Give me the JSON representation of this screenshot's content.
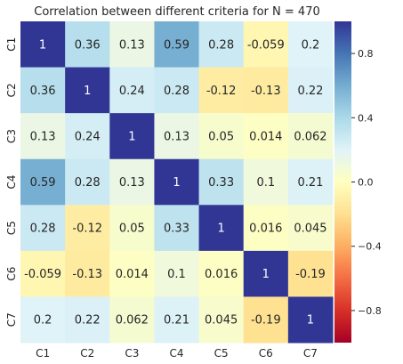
{
  "chart_data": {
    "type": "heatmap",
    "title": "Correlation between different criteria for N = 470",
    "xlabel": "",
    "ylabel": "",
    "x_labels": [
      "C1",
      "C2",
      "C3",
      "C4",
      "C5",
      "C6",
      "C7"
    ],
    "y_labels": [
      "C1",
      "C2",
      "C3",
      "C4",
      "C5",
      "C6",
      "C7"
    ],
    "values": [
      [
        1,
        0.36,
        0.13,
        0.59,
        0.28,
        -0.059,
        0.2
      ],
      [
        0.36,
        1,
        0.24,
        0.28,
        -0.12,
        -0.13,
        0.22
      ],
      [
        0.13,
        0.24,
        1,
        0.13,
        0.05,
        0.014,
        0.062
      ],
      [
        0.59,
        0.28,
        0.13,
        1,
        0.33,
        0.1,
        0.21
      ],
      [
        0.28,
        -0.12,
        0.05,
        0.33,
        1,
        0.016,
        0.045
      ],
      [
        -0.059,
        -0.13,
        0.014,
        0.1,
        0.016,
        1,
        -0.19
      ],
      [
        0.2,
        0.22,
        0.062,
        0.21,
        0.045,
        -0.19,
        1
      ]
    ],
    "value_labels": [
      [
        "1",
        "0.36",
        "0.13",
        "0.59",
        "0.28",
        "-0.059",
        "0.2"
      ],
      [
        "0.36",
        "1",
        "0.24",
        "0.28",
        "-0.12",
        "-0.13",
        "0.22"
      ],
      [
        "0.13",
        "0.24",
        "1",
        "0.13",
        "0.05",
        "0.014",
        "0.062"
      ],
      [
        "0.59",
        "0.28",
        "0.13",
        "1",
        "0.33",
        "0.1",
        "0.21"
      ],
      [
        "0.28",
        "-0.12",
        "0.05",
        "0.33",
        "1",
        "0.016",
        "0.045"
      ],
      [
        "-0.059",
        "-0.13",
        "0.014",
        "0.1",
        "0.016",
        "1",
        "-0.19"
      ],
      [
        "0.2",
        "0.22",
        "0.062",
        "0.21",
        "0.045",
        "-0.19",
        "1"
      ]
    ],
    "colorscale": "RdYlBu",
    "colorscale_stops": [
      "#a50026",
      "#d73027",
      "#f46d43",
      "#fdae61",
      "#fee090",
      "#ffffbf",
      "#e0f3f8",
      "#abd9e9",
      "#74add1",
      "#4575b4",
      "#313695"
    ],
    "vmin": -1,
    "vmax": 1,
    "colorbar_ticks": [
      0.8,
      0.4,
      0.0,
      -0.4,
      -0.8
    ],
    "colorbar_tick_labels": [
      "0.8",
      "0.4",
      "0.0",
      "−0.4",
      "−0.8"
    ],
    "grid": false,
    "legend": "colorbar-right"
  }
}
